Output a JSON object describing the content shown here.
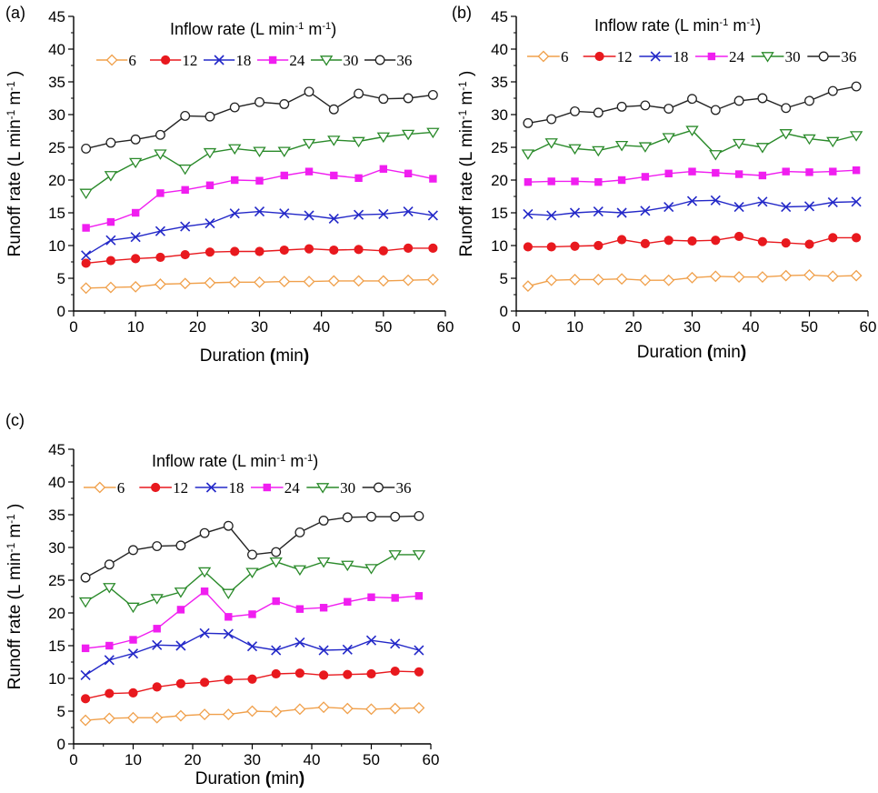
{
  "legend_title_parts": [
    "Inflow rate (L min",
    "-1",
    " m",
    "-1",
    ")"
  ],
  "ylabel_parts": [
    "Runoff rate (L min",
    "-1",
    " m",
    "-1",
    " )"
  ],
  "xlabel_parts": [
    "Duration ",
    "(",
    "min",
    ")"
  ],
  "colors": {
    "6": "#f0a04b",
    "12": "#e8191e",
    "18": "#2328c8",
    "24": "#f01ef0",
    "30": "#2a8a2a",
    "36": "#222222"
  },
  "chart_data": [
    {
      "type": "line",
      "panel_label": "(a)",
      "xlim": [
        0,
        60
      ],
      "ylim": [
        0,
        45
      ],
      "xticks": [
        0,
        10,
        20,
        30,
        40,
        50,
        60
      ],
      "yticks": [
        0,
        5,
        10,
        15,
        20,
        25,
        30,
        35,
        40,
        45
      ],
      "x": [
        2,
        6,
        10,
        14,
        18,
        22,
        26,
        30,
        34,
        38,
        42,
        46,
        50,
        54,
        58
      ],
      "series": [
        {
          "name": "6",
          "marker": "diamond-open",
          "values": [
            3.5,
            3.6,
            3.7,
            4.1,
            4.2,
            4.3,
            4.4,
            4.4,
            4.5,
            4.5,
            4.6,
            4.6,
            4.6,
            4.7,
            4.8
          ]
        },
        {
          "name": "12",
          "marker": "circle-filled",
          "values": [
            7.3,
            7.7,
            8.0,
            8.2,
            8.6,
            9.0,
            9.1,
            9.1,
            9.3,
            9.5,
            9.3,
            9.4,
            9.2,
            9.6,
            9.6
          ]
        },
        {
          "name": "18",
          "marker": "x",
          "values": [
            8.5,
            10.8,
            11.3,
            12.2,
            12.9,
            13.4,
            14.9,
            15.2,
            14.9,
            14.6,
            14.1,
            14.7,
            14.8,
            15.2,
            14.6
          ]
        },
        {
          "name": "24",
          "marker": "square-filled",
          "values": [
            12.7,
            13.6,
            15.0,
            18.0,
            18.5,
            19.2,
            20.0,
            19.9,
            20.7,
            21.3,
            20.7,
            20.3,
            21.7,
            21.0,
            20.2
          ]
        },
        {
          "name": "30",
          "marker": "triangle-down-open",
          "values": [
            18.0,
            20.7,
            22.7,
            24.0,
            21.7,
            24.2,
            24.8,
            24.4,
            24.4,
            25.6,
            26.1,
            25.9,
            26.6,
            27.0,
            27.3
          ]
        },
        {
          "name": "36",
          "marker": "circle-open",
          "values": [
            24.8,
            25.7,
            26.2,
            26.9,
            29.8,
            29.7,
            31.1,
            31.9,
            31.6,
            33.5,
            30.8,
            33.2,
            32.4,
            32.5,
            33.0
          ]
        }
      ]
    },
    {
      "type": "line",
      "panel_label": "(b)",
      "xlim": [
        0,
        60
      ],
      "ylim": [
        0,
        45
      ],
      "xticks": [
        0,
        10,
        20,
        30,
        40,
        50,
        60
      ],
      "yticks": [
        0,
        5,
        10,
        15,
        20,
        25,
        30,
        35,
        40,
        45
      ],
      "x": [
        2,
        6,
        10,
        14,
        18,
        22,
        26,
        30,
        34,
        38,
        42,
        46,
        50,
        54,
        58
      ],
      "series": [
        {
          "name": "6",
          "marker": "diamond-open",
          "values": [
            3.8,
            4.7,
            4.8,
            4.8,
            4.9,
            4.7,
            4.7,
            5.1,
            5.3,
            5.2,
            5.2,
            5.4,
            5.5,
            5.3,
            5.4
          ]
        },
        {
          "name": "12",
          "marker": "circle-filled",
          "values": [
            9.8,
            9.8,
            9.9,
            10.0,
            10.9,
            10.3,
            10.8,
            10.7,
            10.8,
            11.4,
            10.6,
            10.4,
            10.2,
            11.2,
            11.2
          ]
        },
        {
          "name": "18",
          "marker": "x",
          "values": [
            14.8,
            14.6,
            15.0,
            15.2,
            15.0,
            15.3,
            15.9,
            16.8,
            16.9,
            15.9,
            16.7,
            15.9,
            16.0,
            16.6,
            16.7
          ]
        },
        {
          "name": "24",
          "marker": "square-filled",
          "values": [
            19.7,
            19.8,
            19.8,
            19.7,
            20.0,
            20.5,
            21.0,
            21.3,
            21.1,
            20.9,
            20.7,
            21.3,
            21.2,
            21.3,
            21.5
          ]
        },
        {
          "name": "30",
          "marker": "triangle-down-open",
          "values": [
            24.0,
            25.7,
            24.8,
            24.5,
            25.3,
            25.1,
            26.5,
            27.6,
            23.9,
            25.6,
            25.0,
            27.1,
            26.3,
            25.9,
            26.8
          ]
        },
        {
          "name": "36",
          "marker": "circle-open",
          "values": [
            28.7,
            29.3,
            30.5,
            30.3,
            31.2,
            31.4,
            30.9,
            32.4,
            30.7,
            32.1,
            32.5,
            31.0,
            32.1,
            33.6,
            34.3
          ]
        }
      ]
    },
    {
      "type": "line",
      "panel_label": "(c)",
      "xlim": [
        0,
        60
      ],
      "ylim": [
        0,
        45
      ],
      "xticks": [
        0,
        10,
        20,
        30,
        40,
        50,
        60
      ],
      "yticks": [
        0,
        5,
        10,
        15,
        20,
        25,
        30,
        35,
        40,
        45
      ],
      "x": [
        2,
        6,
        10,
        14,
        18,
        22,
        26,
        30,
        34,
        38,
        42,
        46,
        50,
        54,
        58
      ],
      "series": [
        {
          "name": "6",
          "marker": "diamond-open",
          "values": [
            3.6,
            3.9,
            4.0,
            4.0,
            4.3,
            4.5,
            4.5,
            5.0,
            4.9,
            5.3,
            5.6,
            5.4,
            5.3,
            5.4,
            5.5
          ]
        },
        {
          "name": "12",
          "marker": "circle-filled",
          "values": [
            6.9,
            7.7,
            7.8,
            8.7,
            9.2,
            9.4,
            9.8,
            9.9,
            10.7,
            10.8,
            10.5,
            10.6,
            10.7,
            11.1,
            11.0
          ]
        },
        {
          "name": "18",
          "marker": "x",
          "values": [
            10.5,
            12.8,
            13.8,
            15.1,
            15.0,
            16.9,
            16.8,
            14.9,
            14.3,
            15.5,
            14.3,
            14.4,
            15.8,
            15.3,
            14.3
          ]
        },
        {
          "name": "24",
          "marker": "square-filled",
          "values": [
            14.6,
            15.0,
            15.9,
            17.6,
            20.5,
            23.3,
            19.4,
            19.8,
            21.8,
            20.6,
            20.8,
            21.7,
            22.4,
            22.3,
            22.6
          ]
        },
        {
          "name": "30",
          "marker": "triangle-down-open",
          "values": [
            21.7,
            23.9,
            20.9,
            22.2,
            23.2,
            26.3,
            23.0,
            26.2,
            27.8,
            26.6,
            27.8,
            27.3,
            26.8,
            28.9,
            28.9
          ]
        },
        {
          "name": "36",
          "marker": "circle-open",
          "values": [
            25.4,
            27.4,
            29.6,
            30.2,
            30.3,
            32.2,
            33.3,
            28.9,
            29.3,
            32.3,
            34.1,
            34.6,
            34.7,
            34.7,
            34.8
          ]
        }
      ]
    }
  ]
}
